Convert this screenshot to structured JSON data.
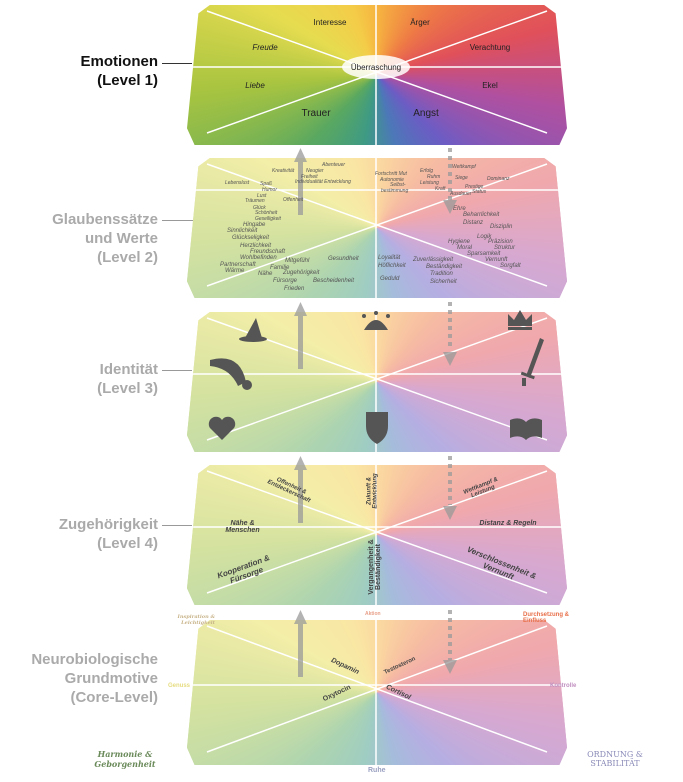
{
  "levels": [
    {
      "title": "Emotionen",
      "subtitle": "(Level 1)"
    },
    {
      "title": "Glaubenssätze",
      "title2": "und Werte",
      "subtitle": "(Level 2)"
    },
    {
      "title": "Identität",
      "subtitle": "(Level 3)"
    },
    {
      "title": "Zugehörigkeit",
      "subtitle": "(Level 4)"
    },
    {
      "title": "Neurobiologische",
      "title2": "Grundmotive",
      "subtitle": "(Core-Level)"
    }
  ],
  "emotions": {
    "interesse": "Interesse",
    "aerger": "Ärger",
    "freude": "Freude",
    "verachtung": "Verachtung",
    "ueberraschung": "Überraschung",
    "liebe": "Liebe",
    "ekel": "Ekel",
    "trauer": "Trauer",
    "angst": "Angst"
  },
  "values": [
    "Kreativität",
    "Abenteuer",
    "Neugier",
    "Freiheit",
    "Individualität Entwicklung",
    "Lebenslust",
    "Spaß",
    "Humor",
    "Lust",
    "Träumen",
    "Offenheit",
    "Glück",
    "Schönheit",
    "Geselligkeit",
    "Hingabe",
    "Sinnlichkeit",
    "Glückseligkeit",
    "Herzlichkeit",
    "Freundschaft",
    "Wohlbefinden",
    "Partnerschaft",
    "Wärme",
    "Mitgefühl",
    "Familie",
    "Nähe",
    "Zugehörigkeit",
    "Fürsorge",
    "Bescheidenheit",
    "Frieden",
    "Gesundheit",
    "Fortschritt Mut",
    "Autonomie",
    "Selbst-",
    "bestimmung",
    "Erfolg",
    "Ruhm",
    "Leistung",
    "Kraft",
    "Wettkampf",
    "Siege",
    "Dominanz",
    "Prestige",
    "Status",
    "Ausdauer",
    "Ehre",
    "Beharrlichkeit",
    "Distanz",
    "Disziplin",
    "Logik",
    "Präzision",
    "Hygiene",
    "Moral",
    "Struktur",
    "Sparsamkeit",
    "Vernunft",
    "Sorgfalt",
    "Loyalität",
    "Höflichkeit",
    "Geduld",
    "Zuverlässigkeit",
    "Beständigkeit",
    "Tradition",
    "Sicherheit"
  ],
  "identity_icons": [
    "wizard-hat",
    "jester-hat",
    "crown",
    "cornucopia",
    "sword",
    "heart",
    "shield",
    "book"
  ],
  "belonging": {
    "offenheit": "Offenheit & Entdeckerschaft",
    "zukunft": "Zukunft & Entwicklung",
    "wettkampf": "Wettkampf & Leistung",
    "naehe": "Nähe & Menschen",
    "distanz": "Distanz & Regeln",
    "kooperation": "Kooperation & Fürsorge",
    "vergangenheit": "Vergangenheit & Beständigkeit",
    "verschlossenheit": "Verschlossenheit & Vernunft"
  },
  "core": {
    "inspiration": "Inspiration & Leichtigkeit",
    "aktion": "Aktion",
    "durchsetzung": "Durchsetzung & Einfluss",
    "genuss": "Genuss",
    "kontrolle": "Kontrolle",
    "ruhe": "Ruhe",
    "harmonie": "Harmonie & Geborgenheit",
    "ordnung": "Ordnung & Stabilität",
    "dopamin": "Dopamin",
    "testosteron": "Testosteron",
    "oxytocin": "Oxytocin",
    "cortisol": "Cortisol"
  },
  "colors": {
    "inspiration": "#c8b48a",
    "durchsetzung": "#e8704a",
    "genuss": "#e6dc80",
    "kontrolle": "#c090c0",
    "harmonie": "#6a8a5a",
    "ordnung": "#8a8ab8",
    "ruhe": "#9aa0c0"
  }
}
